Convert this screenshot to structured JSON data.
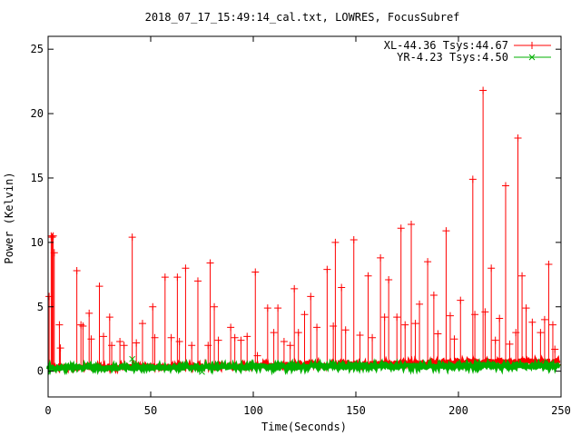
{
  "chart_data": {
    "type": "line",
    "title": "2018_07_17_15:49:14_cal.txt, LOWRES, FocusSubref",
    "xlabel": "Time(Seconds)",
    "ylabel": "Power (Kelvin)",
    "xlim": [
      0,
      250
    ],
    "ylim": [
      -2,
      26
    ],
    "x_ticks": [
      "0",
      "50",
      "100",
      "150",
      "200",
      "250"
    ],
    "y_ticks": [
      "0",
      "5",
      "10",
      "15",
      "20",
      "25"
    ],
    "grid": false,
    "legend_position": "top-right",
    "series": [
      {
        "name": "XL-44.36 Tsys:44.67",
        "color": "#ff0000",
        "marker": "plus",
        "baseline": [
          [
            0,
            0.3
          ],
          [
            50,
            0.35
          ],
          [
            100,
            0.45
          ],
          [
            150,
            0.55
          ],
          [
            200,
            0.7
          ],
          [
            250,
            0.75
          ]
        ],
        "spikes": [
          [
            0.5,
            5.8
          ],
          [
            1.5,
            10.5
          ],
          [
            2.0,
            10.4
          ],
          [
            2.5,
            10.5
          ],
          [
            3.0,
            9.2
          ],
          [
            5.5,
            3.6
          ],
          [
            6,
            1.8
          ],
          [
            14,
            7.8
          ],
          [
            16,
            3.6
          ],
          [
            17,
            3.5
          ],
          [
            20,
            4.5
          ],
          [
            21,
            2.5
          ],
          [
            25,
            6.6
          ],
          [
            27,
            2.7
          ],
          [
            30,
            4.2
          ],
          [
            31,
            2.0
          ],
          [
            35,
            2.3
          ],
          [
            37,
            2.0
          ],
          [
            41,
            10.4
          ],
          [
            43,
            2.2
          ],
          [
            46,
            3.7
          ],
          [
            51,
            5.0
          ],
          [
            52,
            2.6
          ],
          [
            57,
            7.3
          ],
          [
            60,
            2.6
          ],
          [
            63,
            7.3
          ],
          [
            64,
            2.3
          ],
          [
            67,
            8.0
          ],
          [
            70,
            2.0
          ],
          [
            73,
            7.0
          ],
          [
            78,
            2.0
          ],
          [
            79,
            8.4
          ],
          [
            81,
            5.0
          ],
          [
            83,
            2.4
          ],
          [
            89,
            3.4
          ],
          [
            91,
            2.6
          ],
          [
            94,
            2.4
          ],
          [
            97,
            2.7
          ],
          [
            101,
            7.7
          ],
          [
            102,
            1.2
          ],
          [
            107,
            4.9
          ],
          [
            110,
            3.0
          ],
          [
            112,
            4.9
          ],
          [
            115,
            2.3
          ],
          [
            118,
            2.0
          ],
          [
            120,
            6.4
          ],
          [
            122,
            3.0
          ],
          [
            125,
            4.4
          ],
          [
            128,
            5.8
          ],
          [
            131,
            3.4
          ],
          [
            136,
            7.9
          ],
          [
            139,
            3.5
          ],
          [
            140,
            10.0
          ],
          [
            143,
            6.5
          ],
          [
            145,
            3.2
          ],
          [
            149,
            10.2
          ],
          [
            152,
            2.8
          ],
          [
            156,
            7.4
          ],
          [
            158,
            2.6
          ],
          [
            162,
            8.8
          ],
          [
            164,
            4.2
          ],
          [
            166,
            7.1
          ],
          [
            170,
            4.2
          ],
          [
            172,
            11.1
          ],
          [
            174,
            3.6
          ],
          [
            177,
            11.4
          ],
          [
            179,
            3.7
          ],
          [
            181,
            5.2
          ],
          [
            185,
            8.5
          ],
          [
            188,
            5.9
          ],
          [
            190,
            2.9
          ],
          [
            194,
            10.9
          ],
          [
            196,
            4.3
          ],
          [
            198,
            2.5
          ],
          [
            201,
            5.5
          ],
          [
            207,
            14.9
          ],
          [
            208,
            4.4
          ],
          [
            212,
            21.8
          ],
          [
            213,
            4.6
          ],
          [
            216,
            8.0
          ],
          [
            218,
            2.4
          ],
          [
            220,
            4.1
          ],
          [
            223,
            14.4
          ],
          [
            225,
            2.1
          ],
          [
            228,
            3.0
          ],
          [
            229,
            18.1
          ],
          [
            231,
            7.4
          ],
          [
            233,
            4.9
          ],
          [
            236,
            3.8
          ],
          [
            240,
            3.0
          ],
          [
            242,
            4.0
          ],
          [
            244,
            8.3
          ],
          [
            246,
            3.6
          ],
          [
            247,
            1.7
          ],
          [
            248,
            0.5
          ]
        ]
      },
      {
        "name": "YR-4.23 Tsys:4.50",
        "color": "#00b000",
        "marker": "cross",
        "baseline": [
          [
            0,
            0.25
          ],
          [
            50,
            0.3
          ],
          [
            100,
            0.35
          ],
          [
            150,
            0.4
          ],
          [
            200,
            0.4
          ],
          [
            250,
            0.4
          ]
        ],
        "spikes": [
          [
            41,
            0.95
          ],
          [
            75,
            -0.05
          ],
          [
            205,
            0.55
          ],
          [
            240,
            0.6
          ]
        ]
      }
    ]
  }
}
